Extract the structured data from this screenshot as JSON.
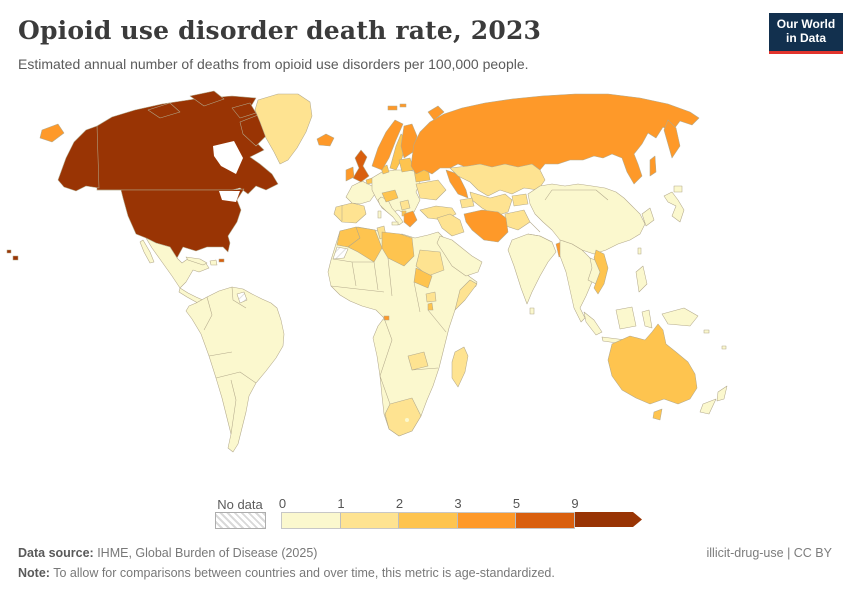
{
  "header": {
    "title": "Opioid use disorder death rate, 2023",
    "subtitle": "Estimated annual number of deaths from opioid use disorders per 100,000 people.",
    "logo": {
      "line1": "Our World",
      "line2": "in Data",
      "bg_color": "#12304E",
      "accent_color": "#E2342D"
    }
  },
  "palette": {
    "bin0": "#FBF8CE",
    "bin1": "#FEE391",
    "bin2": "#FEC44F",
    "bin3": "#FE9929",
    "bin4": "#D95F0E",
    "bin5": "#993404"
  },
  "chart_data": {
    "type": "choropleth_map",
    "title": "Opioid use disorder death rate, 2023",
    "unit": "deaths per 100,000 people",
    "legend": {
      "no_data_label": "No data",
      "tick_labels": [
        "0",
        "1",
        "2",
        "3",
        "5",
        "9"
      ],
      "bins": [
        {
          "range": "0-1",
          "color": "#FBF8CE"
        },
        {
          "range": "1-2",
          "color": "#FEE391"
        },
        {
          "range": "2-3",
          "color": "#FEC44F"
        },
        {
          "range": "3-5",
          "color": "#FE9929"
        },
        {
          "range": "5-9",
          "color": "#D95F0E"
        },
        {
          "range": "9+",
          "color": "#993404"
        }
      ]
    },
    "regions": {
      "usa": "bin5",
      "alaska": "bin5",
      "hawaii": "bin5",
      "canada": "bin5",
      "canada-arctic-1": "bin5",
      "canada-arctic-2": "bin5",
      "canada-arctic-3": "bin5",
      "baffin": "bin5",
      "greenland": "bin1",
      "iceland": "bin3",
      "mexico": "bin0",
      "baja": "bin0",
      "central-america": "bin0",
      "cuba": "bin0",
      "hispaniola": "bin0",
      "puerto-rico": "bin4",
      "south-america": "bin0",
      "french-guiana": "no-data",
      "uk": "bin4",
      "ireland": "bin3",
      "norway": "bin3",
      "sweden": "bin2",
      "finland": "bin3",
      "denmark": "bin2",
      "svalbard-1": "bin3",
      "svalbard-2": "bin3",
      "iberia": "bin1",
      "france": "bin0",
      "belgium": "bin2",
      "central-europe": "bin0",
      "italy": "bin0",
      "sicily": "bin0",
      "sardinia": "bin0",
      "baltics": "bin2",
      "belarus": "bin2",
      "ukraine": "bin1",
      "austria-croatia": "bin2",
      "serbia": "bin1",
      "albania": "bin2",
      "greece": "bin3",
      "russia": "bin3",
      "russia-caucasus": "bin3",
      "russia-chukotka-west": "bin3",
      "kamchatka": "bin3",
      "sakhalin": "bin3",
      "novaya-zemlya": "bin3",
      "turkey": "bin1",
      "caucasus-states": "bin1",
      "iraq-syria": "bin1",
      "iran": "bin3",
      "arabia": "bin0",
      "kazakhstan": "bin1",
      "uzbek-turkmen": "bin1",
      "kyrgyz-tajik": "bin1",
      "afghanistan": "bin1",
      "india": "bin0",
      "sri-lanka": "bin0",
      "bangladesh": "bin3",
      "east-asia": "bin0",
      "korea": "bin0",
      "japan": "bin0",
      "hokkaido": "bin0",
      "taiwan": "bin0",
      "se-asia": "bin0",
      "indochina": "bin0",
      "vietnam": "bin2",
      "sumatra": "bin0",
      "java": "bin0",
      "borneo": "bin0",
      "sulawesi": "bin0",
      "new-guinea": "bin0",
      "philippines": "bin0",
      "australia": "bin2",
      "tasmania": "bin2",
      "nz-north": "bin0",
      "nz-south": "bin0",
      "pacific-1": "bin0",
      "pacific-2": "bin0",
      "africa": "bin0",
      "morocco": "bin2",
      "western-sahara": "no-data",
      "algeria": "bin2",
      "tunisia": "bin1",
      "libya": "bin2",
      "mauritania-line": "bin0",
      "sudan": "bin1",
      "south-sudan": "bin2",
      "somalia": "bin1",
      "uganda": "bin1",
      "rwanda-burundi": "bin2",
      "equatorial-guinea": "bin3",
      "zambia": "bin1",
      "south-africa": "bin1",
      "lesotho": "bin0",
      "madagascar": "bin1"
    }
  },
  "footer": {
    "source_label": "Data source:",
    "source_text": " IHME, Global Burden of Disease (2025)",
    "rights": "illicit-drug-use | CC BY",
    "note_label": "Note:",
    "note_text": " To allow for comparisons between countries and over time, this metric is age-standardized."
  }
}
